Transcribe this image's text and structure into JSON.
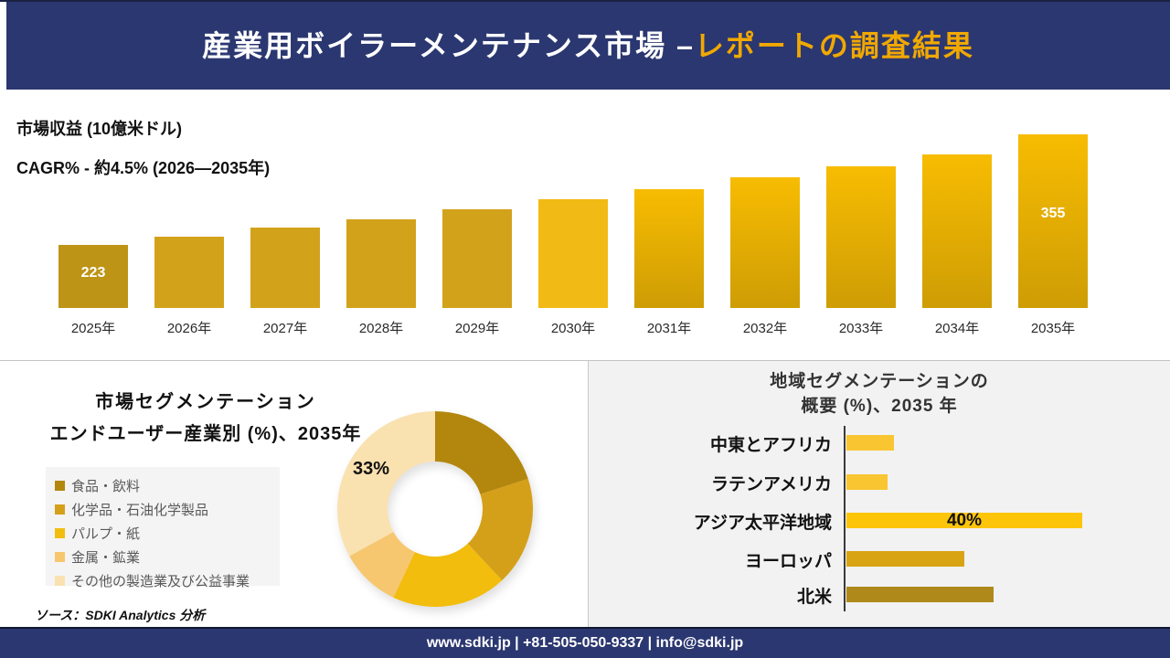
{
  "theme": {
    "navy": "#2b3770",
    "gold_accent": "#f0a802"
  },
  "header": {
    "title_main": "産業用ボイラーメンテナンス市場 –",
    "title_accent": "レポートの調査結果"
  },
  "source_note": "ソース：SDKI Analytics 分析",
  "footer": {
    "contact": "www.sdki.jp | +81-505-050-9337 | info@sdki.jp"
  },
  "chart_data": [
    {
      "type": "bar",
      "title": "市場収益 (10億米ドル)",
      "subtitle": "CAGR% - 約4.5% (2026―2035年)",
      "categories": [
        "2025年",
        "2026年",
        "2027年",
        "2028年",
        "2029年",
        "2030年",
        "2031年",
        "2032年",
        "2033年",
        "2034年",
        "2035年"
      ],
      "values": [
        223,
        233,
        244,
        254,
        266,
        278,
        290,
        304,
        317,
        331,
        355
      ],
      "data_labels": [
        "223",
        "",
        "",
        "",
        "",
        "",
        "",
        "",
        "",
        "",
        "355"
      ],
      "bar_fill": [
        "#be9416",
        "#d3a21b",
        "#d3a21b",
        "#d3a21b",
        "#d3a21b",
        "#f2ba14",
        [
          "#f7bc02",
          "#ce9d04"
        ],
        [
          "#f7bc02",
          "#ce9d04"
        ],
        [
          "#f7bc02",
          "#ce9d04"
        ],
        [
          "#f7bc02",
          "#ce9d04"
        ],
        [
          "#f7bc02",
          "#ce9d04"
        ]
      ],
      "ylabel": "市場収益 (10億米ドル)",
      "grid": false,
      "legend_position": "none"
    },
    {
      "type": "pie",
      "donut": true,
      "title": "市場セグメンテーション",
      "subtitle": "エンドユーザー産業別 (%)、2035年",
      "categories": [
        "食品・飲料",
        "化学品・石油化学製品",
        "パルプ・紙",
        "金属・鉱業",
        "その他の製造業及び公益事業"
      ],
      "values": [
        20,
        18,
        19,
        10,
        33
      ],
      "colors": [
        "#b3870e",
        "#d5a019",
        "#f2bd0d",
        "#f6c76f",
        "#fae1b0"
      ],
      "callout_label": "33%",
      "legend_position": "left"
    },
    {
      "type": "bar",
      "orientation": "horizontal",
      "title_line1": "地域セグメンテーションの",
      "title_line2": "概要 (%)、2035 年",
      "categories": [
        "中東とアフリカ",
        "ラテンアメリカ",
        "アジア太平洋地域",
        "ヨーロッパ",
        "北米"
      ],
      "values": [
        8,
        7,
        40,
        20,
        25
      ],
      "colors": [
        "#f9c632",
        "#f9c632",
        "#fdc50a",
        "#d8a414",
        "#af8a1a"
      ],
      "data_labels": [
        "",
        "",
        "40%",
        "",
        ""
      ],
      "grid": false,
      "legend_position": "none"
    }
  ]
}
